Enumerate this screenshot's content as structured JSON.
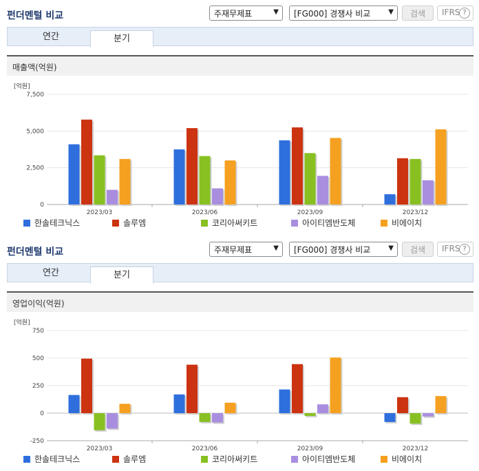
{
  "sections": [
    {
      "title": "펀더멘털 비교",
      "select1": "주재무제표",
      "select2": "[FG000] 경쟁사 비교",
      "search_label": "검색",
      "ifrs_label": "IFRS",
      "help_label": "?",
      "tabs": [
        {
          "label": "연간"
        },
        {
          "label": "분기"
        }
      ],
      "active_tab": 1,
      "panel_title": "매출액(억원)"
    },
    {
      "title": "펀더멘털 비교",
      "select1": "주재무제표",
      "select2": "[FG000] 경쟁사 비교",
      "search_label": "검색",
      "ifrs_label": "IFRS",
      "help_label": "?",
      "tabs": [
        {
          "label": "연간"
        },
        {
          "label": "분기"
        }
      ],
      "active_tab": 1,
      "panel_title": "영업이익(억원)"
    }
  ],
  "colors": {
    "한솔테크닉스": "#2f6fdd",
    "솔루엠": "#cc3311",
    "코리아써키트": "#88c022",
    "아이티엠반도체": "#a98ee0",
    "비에이치": "#f5a020"
  },
  "chart_data": [
    {
      "type": "bar",
      "unit_label": "[억원]",
      "categories": [
        "2023/03",
        "2023/06",
        "2023/09",
        "2023/12"
      ],
      "ylim": [
        0,
        7500
      ],
      "yticks": [
        0,
        2500,
        5000,
        7500
      ],
      "ytick_labels": [
        "0",
        "2,500",
        "5,000",
        "7,500"
      ],
      "series": [
        {
          "name": "한솔테크닉스",
          "values": [
            4100,
            3750,
            4370,
            700
          ]
        },
        {
          "name": "솔루엠",
          "values": [
            5780,
            5200,
            5250,
            3150
          ]
        },
        {
          "name": "코리아써키트",
          "values": [
            3350,
            3300,
            3500,
            3100
          ]
        },
        {
          "name": "아이티엠반도체",
          "values": [
            1000,
            1100,
            1950,
            1650
          ]
        },
        {
          "name": "비에이치",
          "values": [
            3100,
            3000,
            4530,
            5120
          ]
        }
      ]
    },
    {
      "type": "bar",
      "unit_label": "[억원]",
      "categories": [
        "2023/03",
        "2023/06",
        "2023/09",
        "2023/12"
      ],
      "ylim": [
        -250,
        750
      ],
      "yticks": [
        -250,
        0,
        250,
        500,
        750
      ],
      "ytick_labels": [
        "-250",
        "0",
        "250",
        "500",
        "750"
      ],
      "series": [
        {
          "name": "한솔테크닉스",
          "values": [
            165,
            170,
            215,
            -80
          ]
        },
        {
          "name": "솔루엠",
          "values": [
            495,
            440,
            445,
            145
          ]
        },
        {
          "name": "코리아써키트",
          "values": [
            -155,
            -80,
            -25,
            -95
          ]
        },
        {
          "name": "아이티엠반도체",
          "values": [
            -140,
            -85,
            80,
            -30
          ]
        },
        {
          "name": "비에이치",
          "values": [
            85,
            95,
            505,
            155
          ]
        }
      ]
    }
  ]
}
